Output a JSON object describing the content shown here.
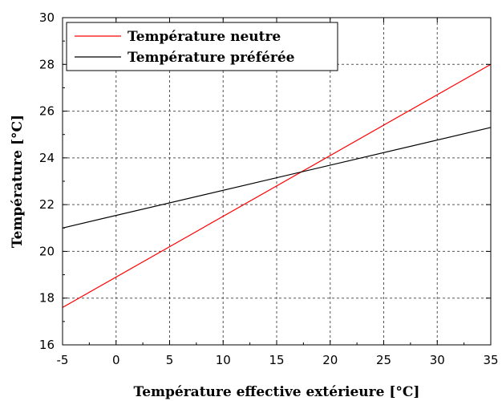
{
  "chart_data": {
    "type": "line",
    "xlabel": "Température effective extérieure [°C]",
    "ylabel": "Température [°C]",
    "xlim": [
      -5,
      35
    ],
    "ylim": [
      16,
      30
    ],
    "xticks": [
      "-5",
      "0",
      "5",
      "10",
      "15",
      "20",
      "25",
      "30",
      "35"
    ],
    "yticks": [
      "16",
      "18",
      "20",
      "22",
      "24",
      "26",
      "28",
      "30"
    ],
    "grid": true,
    "legend_position": "top-left",
    "series": [
      {
        "name": "Température neutre",
        "color": "#ff0000",
        "x": [
          -5,
          35
        ],
        "y": [
          17.6,
          28.0
        ]
      },
      {
        "name": "Température préférée",
        "color": "#000000",
        "x": [
          -5,
          35
        ],
        "y": [
          21.0,
          25.3
        ]
      }
    ]
  }
}
